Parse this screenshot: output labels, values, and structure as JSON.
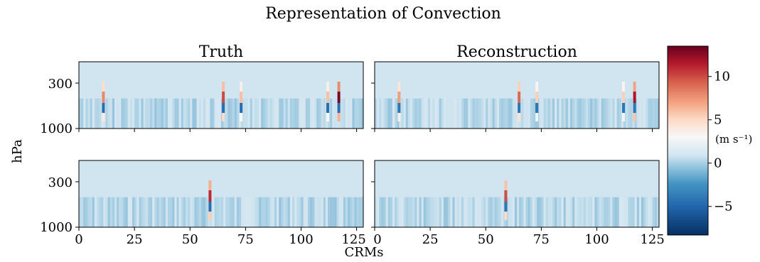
{
  "chart_data": {
    "type": "heatmap",
    "title": "Representation of Convection",
    "xlabel": "CRMs",
    "ylabel": "hPa",
    "panels": [
      {
        "name": "truth-top",
        "title": "Truth",
        "row": 0,
        "col": 0
      },
      {
        "name": "recon-top",
        "title": "Reconstruction",
        "row": 0,
        "col": 1
      },
      {
        "name": "truth-bottom",
        "title": "",
        "row": 1,
        "col": 0
      },
      {
        "name": "recon-bottom",
        "title": "",
        "row": 1,
        "col": 1
      }
    ],
    "xlim": [
      0,
      128
    ],
    "x_ticks": [
      0,
      25,
      50,
      75,
      100,
      125
    ],
    "y_ticks": [
      "300",
      "1000"
    ],
    "colorbar": {
      "label": "(m s⁻¹)",
      "range": [
        -8.3,
        13.5
      ],
      "ticks": [
        -5,
        0,
        5,
        10
      ],
      "tick_labels": [
        "−5",
        "0",
        "5",
        "10"
      ],
      "colormap": "RdBu_r"
    },
    "features": [
      {
        "panel_row": 0,
        "crm": 11,
        "peak": 8
      },
      {
        "panel_row": 0,
        "crm": 65,
        "peak": 10
      },
      {
        "panel_row": 0,
        "crm": 73,
        "peak": 6
      },
      {
        "panel_row": 0,
        "crm": 117,
        "peak": 13
      },
      {
        "panel_row": 0,
        "crm": 112,
        "peak": 6
      },
      {
        "panel_row": 1,
        "crm": 59,
        "peak": 11
      }
    ]
  }
}
